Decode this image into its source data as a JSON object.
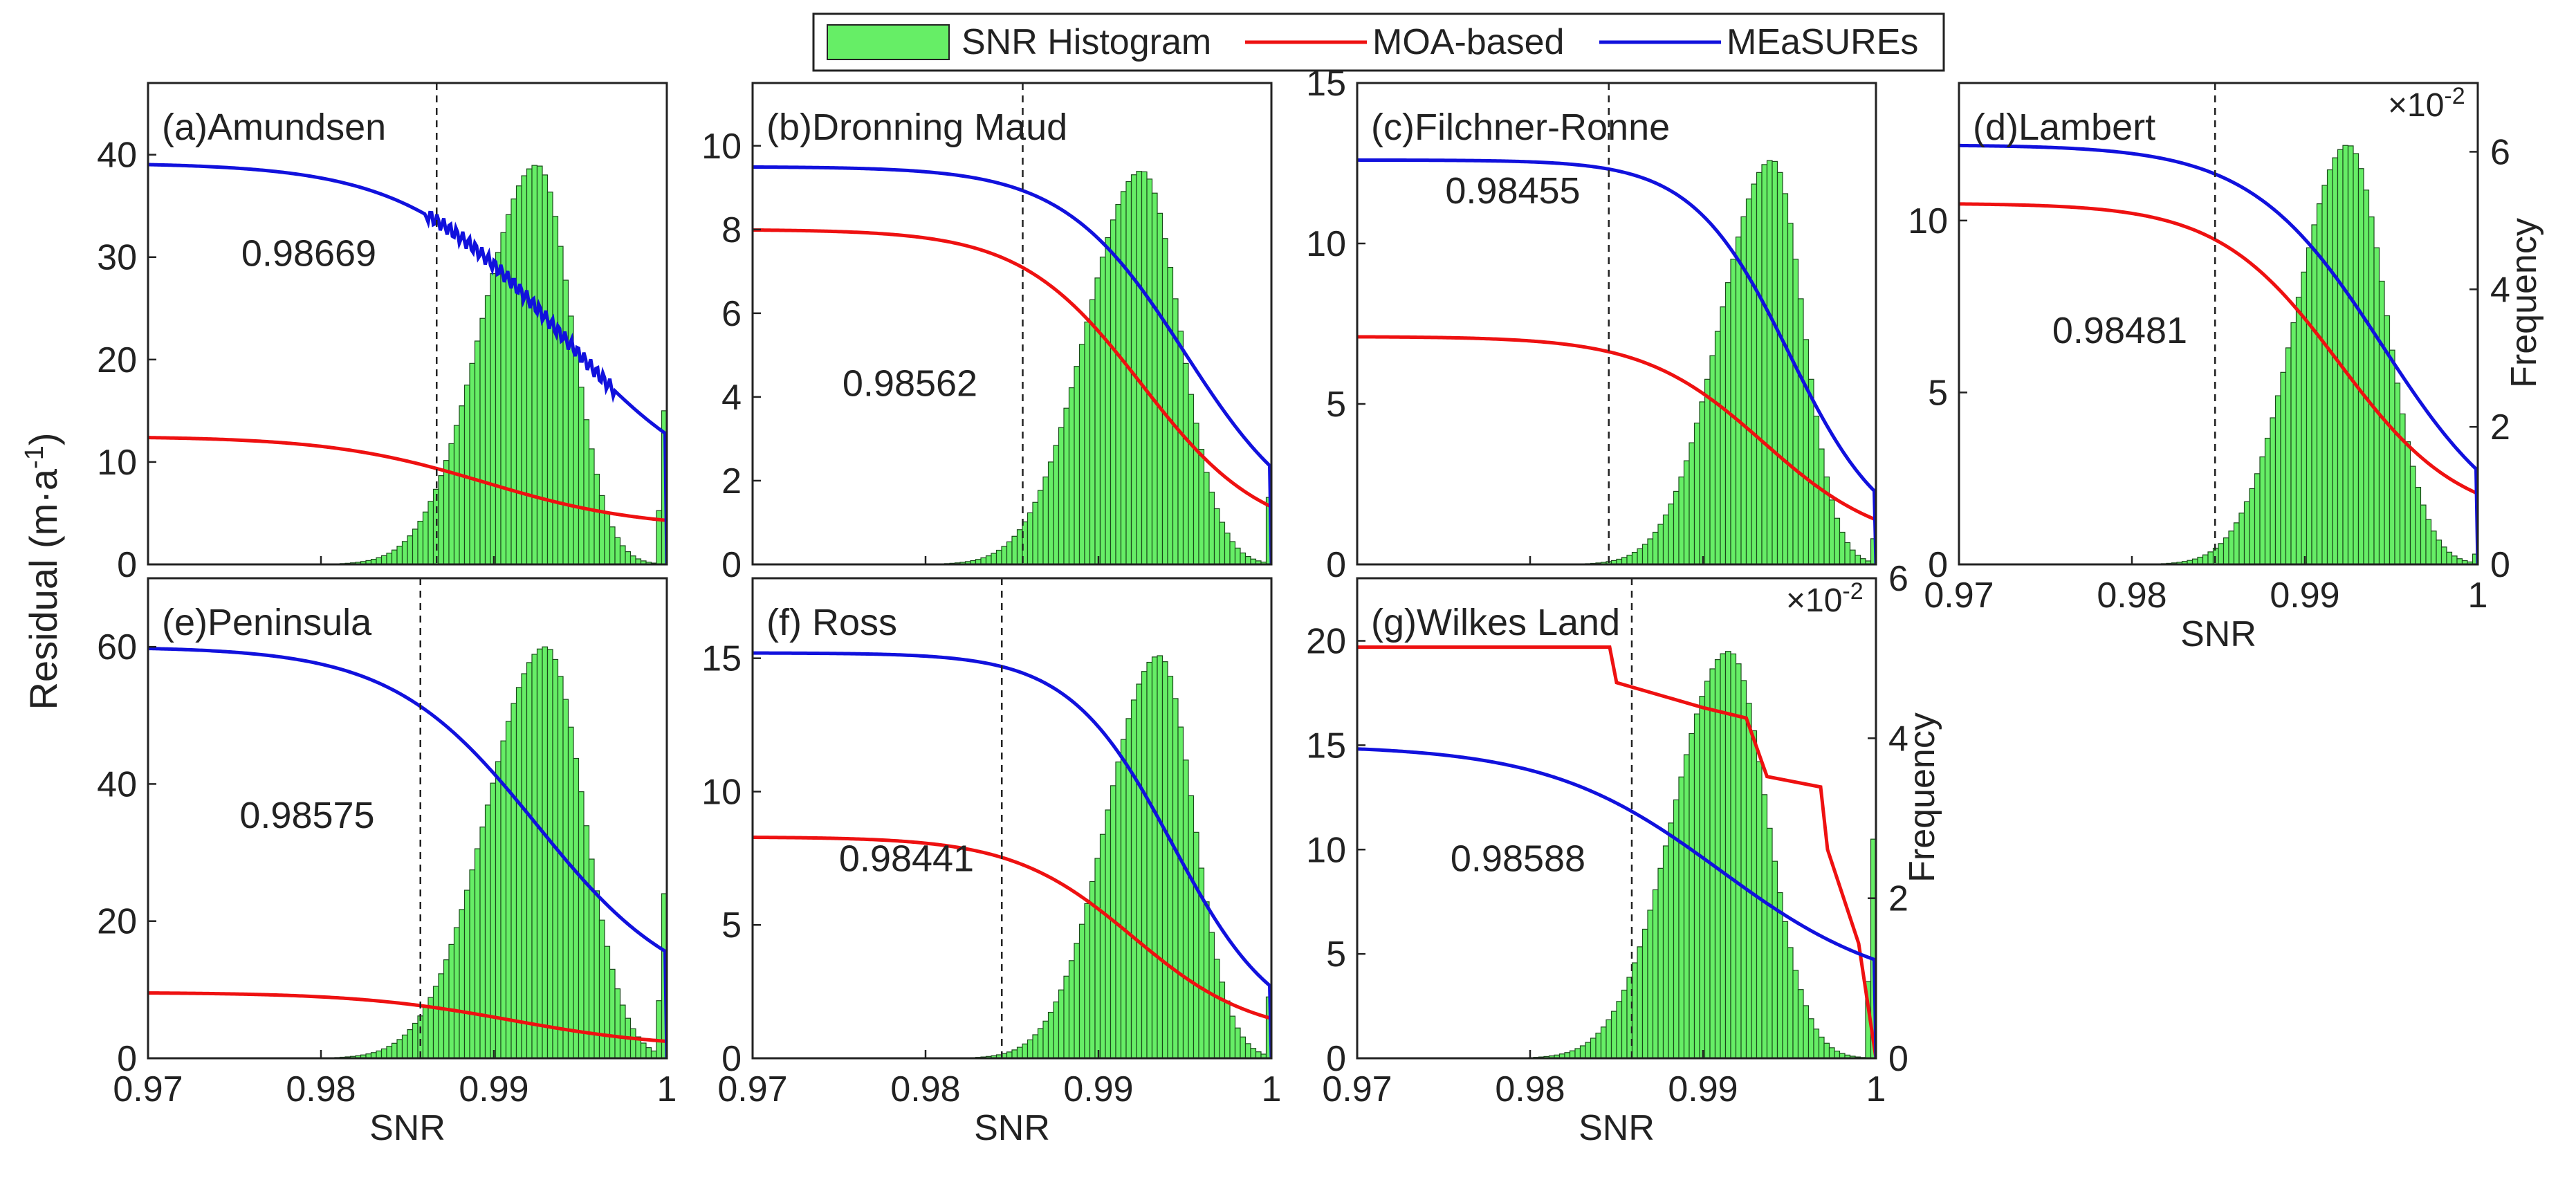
{
  "figure": {
    "legend": [
      {
        "label": "SNR Histogram",
        "kind": "patch",
        "color": "#66ee66"
      },
      {
        "label": "MOA-based",
        "kind": "line",
        "color": "#ee1111"
      },
      {
        "label": "MEaSUREs",
        "kind": "line",
        "color": "#1111dd"
      }
    ],
    "y_label_left": "Residual (m·a",
    "y_label_left_sup": "-1",
    "y_label_left_end": ")",
    "y_label_right": "Frequency",
    "x_label": "SNR",
    "exponent_base": "×10",
    "exponent_power": "-2"
  },
  "chart_data": [
    {
      "id": "a",
      "type": "histogram+line",
      "title": "(a)Amundsen",
      "threshold": 0.98669,
      "threshold_label": "0.98669",
      "xlim": [
        0.97,
        1
      ],
      "xticks": [
        0.97,
        0.98,
        0.99,
        1
      ],
      "xticklabels": [],
      "ylim": [
        0,
        47
      ],
      "yticks": [
        0,
        10,
        20,
        30,
        40
      ],
      "yticklabels": [
        "0",
        "10",
        "20",
        "30",
        "40"
      ],
      "freq_lim": null,
      "hist_peak": 39,
      "hist_mode": 0.9925,
      "hist_sigma_left": 0.0032,
      "hist_sigma_right": 0.002,
      "hist_last": 15,
      "moa_plateau": 12.5,
      "moa_end": 3.5,
      "moa_mid": 0.9895,
      "moa_width": 0.0045,
      "measures_plateau": 39.2,
      "measures_end": 6,
      "measures_mid": 0.9938,
      "measures_width": 0.0045,
      "measures_jitter": true
    },
    {
      "id": "b",
      "type": "histogram+line",
      "title": "(b)Dronning Maud",
      "threshold": 0.98562,
      "threshold_label": "0.98562",
      "xlim": [
        0.97,
        1
      ],
      "xticks": [
        0.97,
        0.98,
        0.99,
        1
      ],
      "xticklabels": [],
      "ylim": [
        0,
        11.5
      ],
      "yticks": [
        0,
        2,
        4,
        6,
        8,
        10
      ],
      "yticklabels": [
        "0",
        "2",
        "4",
        "6",
        "8",
        "10"
      ],
      "freq_lim": null,
      "hist_peak": 9.4,
      "hist_mode": 0.9925,
      "hist_sigma_left": 0.0032,
      "hist_sigma_right": 0.0022,
      "hist_last": 1.6,
      "moa_plateau": 8.0,
      "moa_end": 0.6,
      "moa_mid": 0.9925,
      "moa_width": 0.0035,
      "measures_plateau": 9.5,
      "measures_end": 0.6,
      "measures_mid": 0.995,
      "measures_width": 0.0035,
      "measures_jitter": false
    },
    {
      "id": "c",
      "type": "histogram+line",
      "title": "(c)Filchner-Ronne",
      "threshold": 0.98455,
      "threshold_label": "0.98455",
      "xlim": [
        0.97,
        1
      ],
      "xticks": [
        0.97,
        0.98,
        0.99,
        1
      ],
      "xticklabels": [],
      "ylim": [
        0,
        15
      ],
      "yticks": [
        0,
        5,
        10,
        15
      ],
      "yticklabels": [
        "0",
        "5",
        "10",
        "15"
      ],
      "freq_lim": null,
      "hist_peak": 12.6,
      "hist_mode": 0.994,
      "hist_sigma_left": 0.003,
      "hist_sigma_right": 0.0018,
      "hist_last": 0.8,
      "moa_plateau": 7.1,
      "moa_end": 0.5,
      "moa_mid": 0.9935,
      "moa_width": 0.0035,
      "measures_plateau": 12.6,
      "measures_end": 0.5,
      "measures_mid": 0.995,
      "measures_width": 0.0028,
      "measures_jitter": false
    },
    {
      "id": "d",
      "type": "histogram+line",
      "title": "(d)Lambert",
      "threshold": 0.98481,
      "threshold_label": "0.98481",
      "xlim": [
        0.97,
        1
      ],
      "xticks": [
        0.97,
        0.98,
        0.99,
        1
      ],
      "xticklabels": [
        "0.97",
        "0.98",
        "0.99",
        "1"
      ],
      "ylim": [
        0,
        14
      ],
      "yticks": [
        0,
        5,
        10
      ],
      "yticklabels": [
        "0",
        "5",
        "10"
      ],
      "freq_lim": [
        0,
        7
      ],
      "freq_ticks": [
        0,
        2,
        4,
        6
      ],
      "freq_ticklabels": [
        "0",
        "2",
        "4",
        "6"
      ],
      "hist_peak": 12.2,
      "hist_mode": 0.9925,
      "hist_sigma_left": 0.003,
      "hist_sigma_right": 0.0022,
      "hist_last": 0.3,
      "moa_plateau": 10.5,
      "moa_end": 1.2,
      "moa_mid": 0.992,
      "moa_width": 0.0035,
      "measures_plateau": 12.2,
      "measures_end": 0.5,
      "measures_mid": 0.9945,
      "measures_width": 0.0038,
      "measures_jitter": false
    },
    {
      "id": "e",
      "type": "histogram+line",
      "title": "(e)Peninsula",
      "threshold": 0.98575,
      "threshold_label": "0.98575",
      "xlim": [
        0.97,
        1
      ],
      "xticks": [
        0.97,
        0.98,
        0.99,
        1
      ],
      "xticklabels": [
        "0.97",
        "0.98",
        "0.99",
        "1"
      ],
      "ylim": [
        0,
        70
      ],
      "yticks": [
        0,
        20,
        40,
        60
      ],
      "yticklabels": [
        "0",
        "20",
        "40",
        "60"
      ],
      "freq_lim": null,
      "hist_peak": 60,
      "hist_mode": 0.993,
      "hist_sigma_left": 0.0034,
      "hist_sigma_right": 0.0022,
      "hist_last": 24,
      "moa_plateau": 9.6,
      "moa_end": 1.5,
      "moa_mid": 0.991,
      "moa_width": 0.0045,
      "measures_plateau": 60,
      "measures_end": 8,
      "measures_mid": 0.9925,
      "measures_width": 0.0042,
      "measures_jitter": false
    },
    {
      "id": "f",
      "type": "histogram+line",
      "title": "(f) Ross",
      "threshold": 0.98441,
      "threshold_label": "0.98441",
      "xlim": [
        0.97,
        1
      ],
      "xticks": [
        0.97,
        0.98,
        0.99,
        1
      ],
      "xticklabels": [
        "0.97",
        "0.98",
        "0.99",
        "1"
      ],
      "ylim": [
        0,
        18
      ],
      "yticks": [
        0,
        5,
        10,
        15
      ],
      "yticklabels": [
        "0",
        "5",
        "10",
        "15"
      ],
      "freq_lim": null,
      "hist_peak": 15.1,
      "hist_mode": 0.9935,
      "hist_sigma_left": 0.003,
      "hist_sigma_right": 0.002,
      "hist_last": 2.3,
      "moa_plateau": 8.3,
      "moa_end": 0.8,
      "moa_mid": 0.992,
      "moa_width": 0.0035,
      "measures_plateau": 15.2,
      "measures_end": 0.8,
      "measures_mid": 0.9943,
      "measures_width": 0.003,
      "measures_jitter": false
    },
    {
      "id": "g",
      "type": "histogram+line",
      "title": "(g)Wilkes Land",
      "threshold": 0.98588,
      "threshold_label": "0.98588",
      "xlim": [
        0.97,
        1
      ],
      "xticks": [
        0.97,
        0.98,
        0.99,
        1
      ],
      "xticklabels": [
        "0.97",
        "0.98",
        "0.99",
        "1"
      ],
      "ylim": [
        0,
        23
      ],
      "yticks": [
        0,
        5,
        10,
        15,
        20
      ],
      "yticklabels": [
        "0",
        "5",
        "10",
        "15",
        "20"
      ],
      "freq_lim": [
        0,
        6
      ],
      "freq_ticks": [
        0,
        2,
        4,
        6
      ],
      "freq_ticklabels": [
        "0",
        "2",
        "4",
        "6"
      ],
      "hist_peak": 19.5,
      "hist_mode": 0.9915,
      "hist_sigma_left": 0.0032,
      "hist_sigma_right": 0.0022,
      "hist_last": 10.5,
      "moa_steps": [
        [
          0.97,
          19.7
        ],
        [
          0.9846,
          19.7
        ],
        [
          0.985,
          18.0
        ],
        [
          0.99,
          16.8
        ],
        [
          0.9925,
          16.3
        ],
        [
          0.9937,
          13.5
        ],
        [
          0.9968,
          13.0
        ],
        [
          0.9972,
          10.0
        ],
        [
          0.999,
          5.5
        ],
        [
          1.0,
          0.0
        ]
      ],
      "measures_plateau": 15.0,
      "measures_end": 3.0,
      "measures_mid": 0.991,
      "measures_width": 0.005,
      "measures_jitter": false
    }
  ]
}
